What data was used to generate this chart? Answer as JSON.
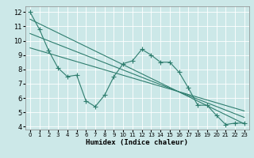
{
  "background_color": "#cce8e8",
  "grid_color": "#ffffff",
  "line_color": "#2e7d6e",
  "xlabel": "Humidex (Indice chaleur)",
  "xlim": [
    -0.5,
    23.5
  ],
  "ylim": [
    3.8,
    12.4
  ],
  "yticks": [
    4,
    5,
    6,
    7,
    8,
    9,
    10,
    11,
    12
  ],
  "xticks": [
    0,
    1,
    2,
    3,
    4,
    5,
    6,
    7,
    8,
    9,
    10,
    11,
    12,
    13,
    14,
    15,
    16,
    17,
    18,
    19,
    20,
    21,
    22,
    23
  ],
  "series1_x": [
    0,
    1,
    2,
    3,
    4,
    5,
    6,
    7,
    8,
    9,
    10,
    11,
    12,
    13,
    14,
    15,
    16,
    17,
    18,
    19,
    20,
    21,
    22,
    23
  ],
  "series1_y": [
    12.0,
    10.8,
    9.3,
    8.1,
    7.5,
    7.6,
    5.8,
    5.4,
    6.2,
    7.5,
    8.4,
    8.6,
    9.4,
    9.0,
    8.5,
    8.5,
    7.8,
    6.7,
    5.5,
    5.5,
    4.8,
    4.15,
    4.25,
    4.25
  ],
  "series2_x": [
    0,
    23
  ],
  "series2_y": [
    11.5,
    4.2
  ],
  "series3_x": [
    0,
    23
  ],
  "series3_y": [
    10.5,
    4.65
  ],
  "series4_x": [
    0,
    23
  ],
  "series4_y": [
    9.5,
    5.1
  ],
  "marker": "+",
  "markersize": 4,
  "linewidth": 0.8,
  "xlabel_fontsize": 6.5,
  "tick_fontsize_x": 5.0,
  "tick_fontsize_y": 6.0
}
